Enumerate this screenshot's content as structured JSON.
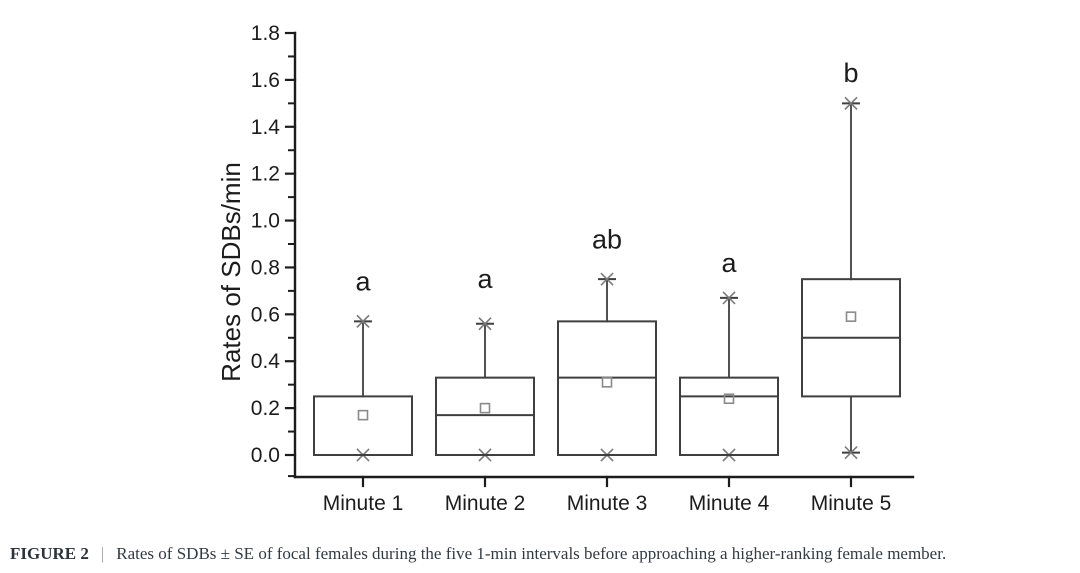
{
  "figure": {
    "caption": {
      "label": "FIGURE 2",
      "separator": "|",
      "text": "Rates of SDBs ± SE of focal females during the five 1-min intervals before approaching a higher-ranking female member."
    }
  },
  "colors": {
    "axis": "#1c1c1c",
    "box_stroke": "#3f3f3f",
    "whisker": "#3f3f3f",
    "marker_gray": "#7a7a7a",
    "mean_square": "#8a8a8a",
    "text": "#1c1c1c"
  },
  "chart_data": {
    "type": "box",
    "title": "",
    "xlabel": "",
    "ylabel": "Rates of SDBs/min",
    "ylim": [
      -0.094,
      1.8
    ],
    "grid": false,
    "legend": "none",
    "y_tick_values": [
      0.0,
      0.2,
      0.4,
      0.6,
      0.8,
      1.0,
      1.2,
      1.4,
      1.6,
      1.8
    ],
    "y_tick_labels": [
      "0.0",
      "0.2",
      "0.4",
      "0.6",
      "0.8",
      "1.0",
      "1.2",
      "1.4",
      "1.6",
      "1.8"
    ],
    "y_minor_tick_values": [
      -0.09,
      0.1,
      0.3,
      0.5,
      0.7,
      0.9,
      1.1,
      1.3,
      1.5,
      1.7
    ],
    "categories": [
      "Minute 1",
      "Minute 2",
      "Minute 3",
      "Minute 4",
      "Minute 5"
    ],
    "series": [
      {
        "category": "Minute 1",
        "whisker_low": 0.0,
        "q1": 0.0,
        "median": 0.0,
        "q3": 0.25,
        "whisker_high": 0.57,
        "mean": 0.17,
        "sig_letter": "a",
        "sig_letter_y": 0.74
      },
      {
        "category": "Minute 2",
        "whisker_low": 0.0,
        "q1": 0.0,
        "median": 0.17,
        "q3": 0.33,
        "whisker_high": 0.56,
        "mean": 0.2,
        "sig_letter": "a",
        "sig_letter_y": 0.75
      },
      {
        "category": "Minute 3",
        "whisker_low": 0.0,
        "q1": 0.0,
        "median": 0.33,
        "q3": 0.57,
        "whisker_high": 0.75,
        "mean": 0.31,
        "sig_letter": "ab",
        "sig_letter_y": 0.92
      },
      {
        "category": "Minute 4",
        "whisker_low": 0.0,
        "q1": 0.0,
        "median": 0.25,
        "q3": 0.33,
        "whisker_high": 0.67,
        "mean": 0.24,
        "sig_letter": "a",
        "sig_letter_y": 0.82
      },
      {
        "category": "Minute 5",
        "whisker_low": 0.01,
        "q1": 0.25,
        "median": 0.5,
        "q3": 0.75,
        "whisker_high": 1.5,
        "mean": 0.59,
        "sig_letter": "b",
        "sig_letter_y": 1.63
      }
    ]
  }
}
